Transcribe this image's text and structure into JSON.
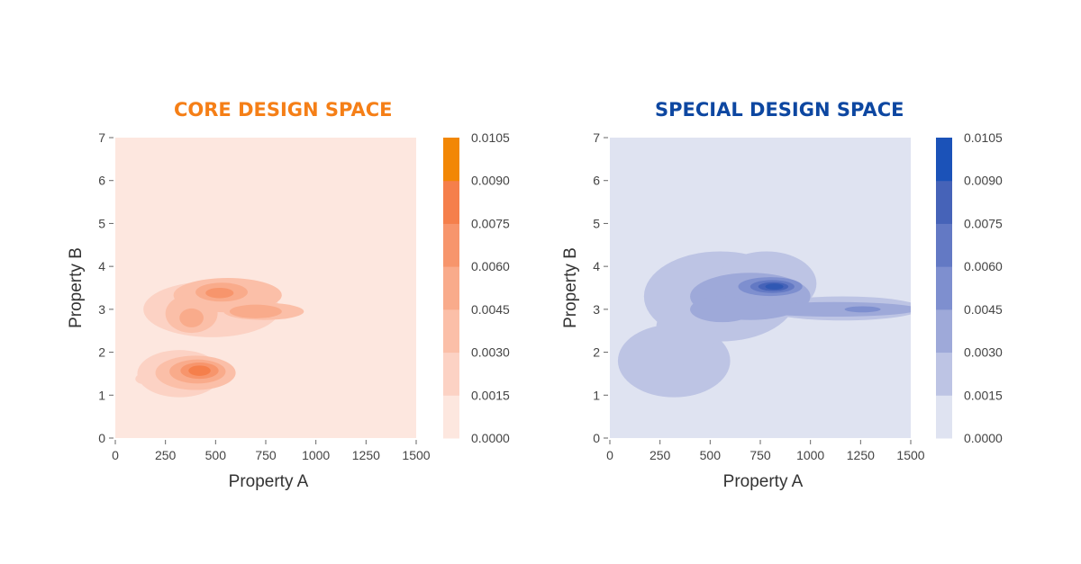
{
  "chart_data": [
    {
      "type": "heatmap",
      "title": "CORE DESIGN SPACE",
      "xlabel": "Property A",
      "ylabel": "Property B",
      "xlim": [
        0,
        1500
      ],
      "ylim": [
        0,
        7
      ],
      "xticks": [
        "0",
        "250",
        "500",
        "750",
        "1000",
        "1250",
        "1500"
      ],
      "yticks": [
        "0",
        "1",
        "2",
        "3",
        "4",
        "5",
        "6",
        "7"
      ],
      "colorbar_ticks": [
        "0.0000",
        "0.0015",
        "0.0030",
        "0.0045",
        "0.0060",
        "0.0075",
        "0.0090",
        "0.0105"
      ],
      "levels": [
        0.0,
        0.0015,
        0.003,
        0.0045,
        0.006,
        0.0075,
        0.009,
        0.0105
      ],
      "level_colors": [
        "#fde7df",
        "#fcd2c4",
        "#fbbfa8",
        "#f9ab8b",
        "#f7956c",
        "#f57f4b",
        "#f3782a",
        "#f28705"
      ],
      "title_color": "#f57f17",
      "contours": [
        {
          "level": 1,
          "cx": 320,
          "cy": 1.5,
          "rx": 210,
          "ry": 0.55
        },
        {
          "level": 1,
          "cx": 480,
          "cy": 3.0,
          "rx": 340,
          "ry": 0.65
        },
        {
          "level": 1,
          "cx": 140,
          "cy": 1.38,
          "rx": 40,
          "ry": 0.12
        },
        {
          "level": 2,
          "cx": 400,
          "cy": 1.52,
          "rx": 200,
          "ry": 0.4
        },
        {
          "level": 2,
          "cx": 560,
          "cy": 3.33,
          "rx": 270,
          "ry": 0.4
        },
        {
          "level": 2,
          "cx": 380,
          "cy": 2.9,
          "rx": 130,
          "ry": 0.45
        },
        {
          "level": 2,
          "cx": 740,
          "cy": 2.95,
          "rx": 200,
          "ry": 0.2
        },
        {
          "level": 3,
          "cx": 410,
          "cy": 1.55,
          "rx": 140,
          "ry": 0.28
        },
        {
          "level": 3,
          "cx": 530,
          "cy": 3.4,
          "rx": 130,
          "ry": 0.22
        },
        {
          "level": 3,
          "cx": 380,
          "cy": 2.8,
          "rx": 60,
          "ry": 0.22
        },
        {
          "level": 3,
          "cx": 700,
          "cy": 2.95,
          "rx": 130,
          "ry": 0.16
        },
        {
          "level": 4,
          "cx": 420,
          "cy": 1.57,
          "rx": 95,
          "ry": 0.19
        },
        {
          "level": 4,
          "cx": 520,
          "cy": 3.38,
          "rx": 70,
          "ry": 0.12
        },
        {
          "level": 5,
          "cx": 420,
          "cy": 1.57,
          "rx": 55,
          "ry": 0.12
        }
      ]
    },
    {
      "type": "heatmap",
      "title": "SPECIAL DESIGN SPACE",
      "xlabel": "Property A",
      "ylabel": "Property B",
      "xlim": [
        0,
        1500
      ],
      "ylim": [
        0,
        7
      ],
      "xticks": [
        "0",
        "250",
        "500",
        "750",
        "1000",
        "1250",
        "1500"
      ],
      "yticks": [
        "0",
        "1",
        "2",
        "3",
        "4",
        "5",
        "6",
        "7"
      ],
      "colorbar_ticks": [
        "0.0000",
        "0.0015",
        "0.0030",
        "0.0045",
        "0.0060",
        "0.0075",
        "0.0090",
        "0.0105"
      ],
      "levels": [
        0.0,
        0.0015,
        0.003,
        0.0045,
        0.006,
        0.0075,
        0.009,
        0.0105
      ],
      "level_colors": [
        "#dfe3f1",
        "#bdc4e4",
        "#9ea9d9",
        "#7e8fcf",
        "#6379c4",
        "#4663b8",
        "#3058b3",
        "#1b52b8"
      ],
      "title_color": "#0d47a1",
      "contours": [
        {
          "level": 1,
          "cx": 320,
          "cy": 1.8,
          "rx": 280,
          "ry": 0.85
        },
        {
          "level": 1,
          "cx": 550,
          "cy": 3.3,
          "rx": 380,
          "ry": 1.05
        },
        {
          "level": 1,
          "cx": 1160,
          "cy": 3.02,
          "rx": 390,
          "ry": 0.28
        },
        {
          "level": 1,
          "cx": 380,
          "cy": 2.5,
          "rx": 150,
          "ry": 0.8
        },
        {
          "level": 1,
          "cx": 780,
          "cy": 3.6,
          "rx": 250,
          "ry": 0.75
        },
        {
          "level": 2,
          "cx": 700,
          "cy": 3.3,
          "rx": 300,
          "ry": 0.55
        },
        {
          "level": 2,
          "cx": 1120,
          "cy": 3.0,
          "rx": 420,
          "ry": 0.17
        },
        {
          "level": 2,
          "cx": 560,
          "cy": 3.0,
          "rx": 160,
          "ry": 0.3
        },
        {
          "level": 3,
          "cx": 800,
          "cy": 3.53,
          "rx": 160,
          "ry": 0.22
        },
        {
          "level": 3,
          "cx": 1260,
          "cy": 3.0,
          "rx": 90,
          "ry": 0.07
        },
        {
          "level": 4,
          "cx": 810,
          "cy": 3.53,
          "rx": 110,
          "ry": 0.15
        },
        {
          "level": 5,
          "cx": 815,
          "cy": 3.53,
          "rx": 75,
          "ry": 0.1
        },
        {
          "level": 6,
          "cx": 820,
          "cy": 3.53,
          "rx": 45,
          "ry": 0.07
        }
      ]
    }
  ]
}
